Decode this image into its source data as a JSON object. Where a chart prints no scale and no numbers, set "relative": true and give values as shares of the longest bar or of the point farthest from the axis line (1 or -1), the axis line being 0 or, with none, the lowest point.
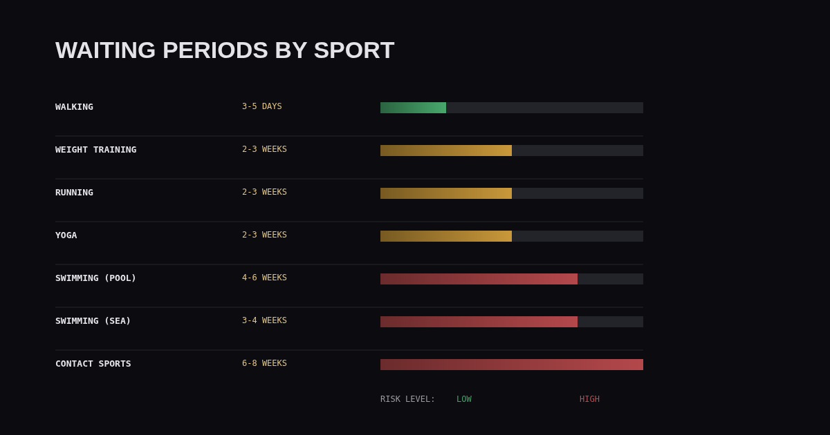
{
  "chart_data": {
    "type": "bar",
    "orientation": "horizontal",
    "relative": true,
    "title": "WAITING PERIODS BY SPORT",
    "categories": [
      "WALKING",
      "WEIGHT TRAINING",
      "RUNNING",
      "YOGA",
      "SWIMMING (POOL)",
      "SWIMMING (SEA)",
      "CONTACT SPORTS"
    ],
    "values": [
      0.25,
      0.5,
      0.5,
      0.5,
      0.75,
      0.75,
      1
    ],
    "colors": [
      "#3a8656",
      "#a17a2e",
      "#a17a2e",
      "#a17a2e",
      "#903a3c",
      "#903a3c",
      "#903a3c"
    ],
    "annotations": [
      "3-5 DAYS",
      "2-3 WEEKS",
      "2-3 WEEKS",
      "2-3 WEEKS",
      "4-6 WEEKS",
      "3-4 WEEKS",
      "6-8 WEEKS",
      "RISK LEVEL:",
      "LOW",
      "HIGH"
    ],
    "grid": "y"
  }
}
